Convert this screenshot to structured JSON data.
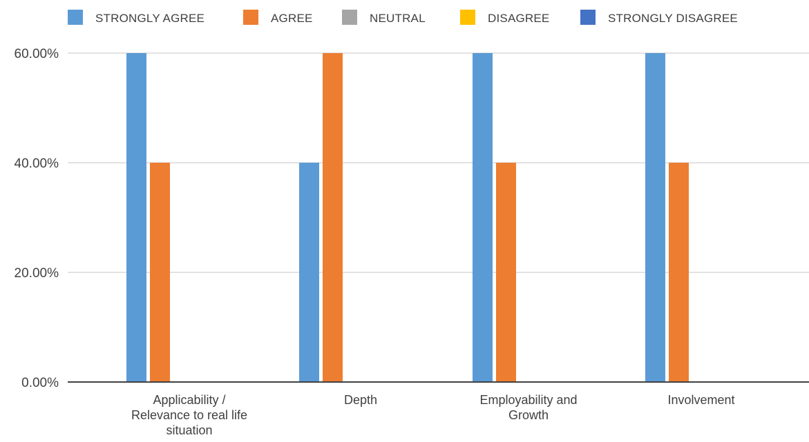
{
  "chart_data": {
    "type": "bar",
    "categories": [
      [
        "Applicability /",
        "Relevance to real life",
        "situation"
      ],
      [
        "Depth"
      ],
      [
        "Employability and",
        "Growth"
      ],
      [
        "Involvement"
      ]
    ],
    "series": [
      {
        "name": "STRONGLY AGREE",
        "color": "#5b9bd5",
        "values": [
          60,
          40,
          60,
          60
        ]
      },
      {
        "name": "AGREE",
        "color": "#ed7d31",
        "values": [
          40,
          60,
          40,
          40
        ]
      },
      {
        "name": "NEUTRAL",
        "color": "#a5a5a5",
        "values": [
          0,
          0,
          0,
          0
        ]
      },
      {
        "name": "DISAGREE",
        "color": "#ffc000",
        "values": [
          0,
          0,
          0,
          0
        ]
      },
      {
        "name": "STRONGLY DISAGREE",
        "color": "#4472c4",
        "values": [
          0,
          0,
          0,
          0
        ]
      }
    ],
    "ylim": [
      0,
      60
    ],
    "yticks": [
      0,
      20,
      40,
      60
    ],
    "ytick_labels": [
      "0.00%",
      "20.00%",
      "40.00%",
      "60.00%"
    ],
    "grid": true,
    "legend_position": "top"
  }
}
